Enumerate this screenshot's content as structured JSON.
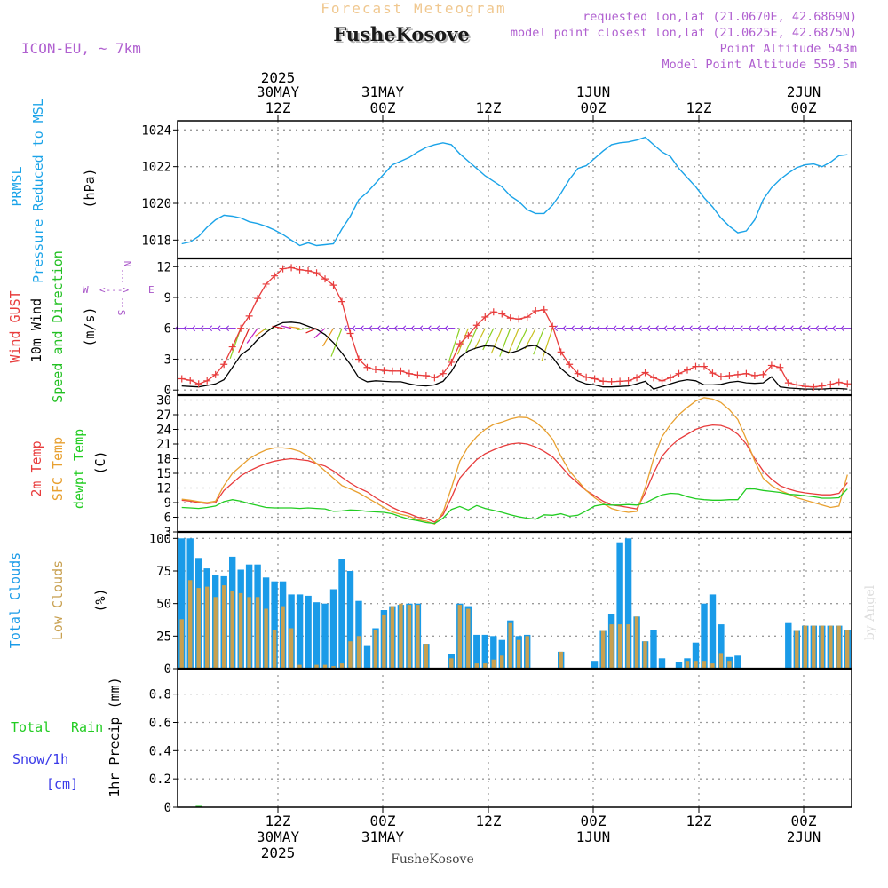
{
  "header": {
    "subtitle": "Forecast Meteogram",
    "location": "FusheKosove",
    "model": "ICON-EU, ~ 7km",
    "requested": "requested lon,lat (21.0670E, 42.6869N)",
    "closest": "model point closest lon,lat (21.0625E, 42.6875N)",
    "point_altitude": "Point Altitude 543m",
    "model_altitude": "Model Point Altitude 559.5m",
    "footer_location": "FusheKosove",
    "credit": "by Angel"
  },
  "colors": {
    "pressure": "#1aa3e8",
    "gust": "#e83c3c",
    "wind": "#000000",
    "direction": "#22c022",
    "compass": "#a855c8",
    "temp2m": "#e83c3c",
    "sfc": "#e8a030",
    "dewpt": "#22cc22",
    "total_clouds": "#1a9be8",
    "low_clouds": "#c8a050",
    "rain": "#22cc22",
    "snow": "#3a3ae8"
  },
  "time_axis": {
    "year": "2025",
    "top_ticks": [
      {
        "line1": "30MAY",
        "line2": "12Z",
        "year": "2025"
      },
      {
        "line1": "31MAY",
        "line2": "00Z"
      },
      {
        "line1": "",
        "line2": "12Z"
      },
      {
        "line1": "1JUN",
        "line2": "00Z"
      },
      {
        "line1": "",
        "line2": "12Z"
      },
      {
        "line1": "2JUN",
        "line2": "00Z"
      }
    ],
    "bottom_ticks": [
      {
        "line1": "12Z",
        "line2": "30MAY",
        "line3": "2025"
      },
      {
        "line1": "00Z",
        "line2": "31MAY"
      },
      {
        "line1": "12Z",
        "line2": ""
      },
      {
        "line1": "00Z",
        "line2": "1JUN"
      },
      {
        "line1": "12Z",
        "line2": ""
      },
      {
        "line1": "00Z",
        "line2": "2JUN"
      }
    ]
  },
  "chart_data": [
    {
      "type": "line",
      "title": "PRMSL Pressure Reduced to MSL",
      "label_line1": "PRMSL",
      "label_line2": "Pressure Reduced to MSL",
      "ylabel": "(hPa)",
      "ylim": [
        1017,
        1024.5
      ],
      "yticks": [
        1018,
        1020,
        1022,
        1024
      ],
      "series": [
        {
          "name": "PRMSL",
          "values": [
            1017.8,
            1017.9,
            1018.2,
            1018.7,
            1019.1,
            1019.35,
            1019.3,
            1019.2,
            1019.0,
            1018.9,
            1018.75,
            1018.55,
            1018.3,
            1018.0,
            1017.7,
            1017.85,
            1017.7,
            1017.75,
            1017.8,
            1018.6,
            1019.3,
            1020.2,
            1020.6,
            1021.1,
            1021.6,
            1022.1,
            1022.3,
            1022.5,
            1022.8,
            1023.05,
            1023.2,
            1023.3,
            1023.2,
            1022.7,
            1022.3,
            1021.9,
            1021.5,
            1021.2,
            1020.9,
            1020.4,
            1020.1,
            1019.65,
            1019.45,
            1019.45,
            1019.9,
            1020.55,
            1021.3,
            1021.9,
            1022.05,
            1022.45,
            1022.85,
            1023.2,
            1023.3,
            1023.35,
            1023.45,
            1023.6,
            1023.2,
            1022.8,
            1022.55,
            1021.9,
            1021.4,
            1020.9,
            1020.3,
            1019.8,
            1019.2,
            1018.75,
            1018.4,
            1018.5,
            1019.1,
            1020.2,
            1020.85,
            1021.3,
            1021.65,
            1021.95,
            1022.1,
            1022.15,
            1022.0,
            1022.25,
            1022.6,
            1022.65
          ]
        }
      ]
    },
    {
      "type": "line",
      "title": "Wind GUST / 10m Wind Speed and Direction",
      "label_gust": "Wind GUST",
      "label_wind": "10m Wind",
      "label_dir": "Speed and Direction",
      "ylabel": "(m/s)",
      "ylim": [
        -0.5,
        12.8
      ],
      "yticks": [
        0,
        3,
        6,
        9,
        12
      ],
      "compass": {
        "n": "N",
        "s": "S",
        "w": "W",
        "e": "E",
        "arrow": "<--->"
      },
      "series": [
        {
          "name": "Wind GUST",
          "values": [
            1.1,
            0.95,
            0.6,
            0.9,
            1.5,
            2.5,
            4.2,
            6.0,
            7.2,
            8.9,
            10.3,
            11.1,
            11.8,
            11.9,
            11.7,
            11.6,
            11.4,
            10.8,
            10.2,
            8.6,
            5.5,
            3.0,
            2.2,
            2.0,
            1.9,
            1.85,
            1.85,
            1.6,
            1.45,
            1.4,
            1.2,
            1.6,
            2.7,
            4.5,
            5.3,
            6.3,
            7.1,
            7.6,
            7.4,
            7.0,
            6.9,
            7.1,
            7.7,
            7.8,
            6.2,
            3.7,
            2.5,
            1.6,
            1.25,
            1.1,
            0.85,
            0.8,
            0.85,
            0.9,
            1.2,
            1.7,
            1.2,
            0.9,
            1.2,
            1.6,
            1.95,
            2.3,
            2.3,
            1.65,
            1.3,
            1.4,
            1.5,
            1.6,
            1.4,
            1.5,
            2.4,
            2.2,
            0.7,
            0.5,
            0.35,
            0.3,
            0.4,
            0.55,
            0.75,
            0.6
          ]
        },
        {
          "name": "10m Wind",
          "values": [
            0.4,
            0.35,
            0.3,
            0.45,
            0.6,
            1.0,
            2.2,
            3.4,
            4.0,
            4.9,
            5.6,
            6.2,
            6.55,
            6.6,
            6.5,
            6.2,
            5.9,
            5.4,
            4.6,
            3.6,
            2.5,
            1.2,
            0.8,
            0.9,
            0.85,
            0.8,
            0.8,
            0.6,
            0.45,
            0.4,
            0.5,
            0.85,
            1.8,
            3.2,
            3.8,
            4.1,
            4.3,
            4.25,
            3.9,
            3.6,
            3.85,
            4.25,
            4.35,
            3.8,
            3.2,
            2.1,
            1.4,
            0.9,
            0.6,
            0.5,
            0.3,
            0.3,
            0.35,
            0.4,
            0.6,
            0.85,
            0.1,
            0.35,
            0.6,
            0.85,
            1.0,
            0.9,
            0.5,
            0.5,
            0.55,
            0.75,
            0.85,
            0.7,
            0.65,
            0.7,
            1.3,
            0.3,
            0.2,
            0.15,
            0.1,
            0.1,
            0.1,
            0.15,
            0.15,
            0.1
          ]
        }
      ]
    },
    {
      "type": "line",
      "title": "2m Temp / SFC Temp / dewpt Temp",
      "label_t2m": "2m Temp",
      "label_sfc": "SFC Temp",
      "label_dew": "dewpt Temp",
      "ylabel": "(C)",
      "ylim": [
        3,
        31
      ],
      "yticks": [
        3,
        6,
        9,
        12,
        15,
        18,
        21,
        24,
        27,
        30
      ],
      "series": [
        {
          "name": "2m Temp",
          "values": [
            9.5,
            9.3,
            9.0,
            8.8,
            9.0,
            11.5,
            13.0,
            14.5,
            15.5,
            16.3,
            17.0,
            17.5,
            17.8,
            18.0,
            17.8,
            17.6,
            17.0,
            16.5,
            15.5,
            14.2,
            13.0,
            12.0,
            11.2,
            10.0,
            9.0,
            8.0,
            7.2,
            6.7,
            6.0,
            5.7,
            5.0,
            6.5,
            10.0,
            14.0,
            16.0,
            17.8,
            19.0,
            19.8,
            20.5,
            21.0,
            21.2,
            21.0,
            20.4,
            19.5,
            18.4,
            16.5,
            14.5,
            13.0,
            11.5,
            10.4,
            9.3,
            8.5,
            8.3,
            8.0,
            7.7,
            11.0,
            15.0,
            18.5,
            20.5,
            22.0,
            23.0,
            24.0,
            24.6,
            24.9,
            24.8,
            24.2,
            23.0,
            21.0,
            18.0,
            15.5,
            13.8,
            12.5,
            11.8,
            11.3,
            11.0,
            10.8,
            10.6,
            10.6,
            10.9,
            13.1
          ]
        },
        {
          "name": "SFC Temp",
          "values": [
            9.7,
            9.5,
            9.2,
            9.0,
            9.3,
            12.5,
            15.0,
            16.5,
            18.0,
            19.0,
            19.8,
            20.2,
            20.2,
            20.0,
            19.5,
            18.5,
            17.0,
            15.5,
            14.0,
            12.5,
            11.8,
            11.0,
            10.0,
            9.0,
            8.0,
            7.1,
            6.6,
            6.2,
            5.5,
            5.2,
            4.6,
            7.0,
            12.0,
            17.5,
            20.5,
            22.5,
            24.0,
            25.0,
            25.5,
            26.1,
            26.5,
            26.4,
            25.5,
            24.0,
            22.0,
            18.5,
            15.5,
            13.5,
            11.5,
            10.0,
            8.8,
            7.8,
            7.3,
            7.0,
            7.2,
            12.0,
            18.0,
            22.5,
            25.0,
            27.0,
            28.5,
            29.8,
            30.5,
            30.2,
            29.5,
            28.0,
            26.0,
            22.0,
            17.5,
            14.0,
            12.5,
            11.5,
            10.8,
            10.0,
            9.5,
            9.0,
            8.5,
            8.0,
            8.3,
            14.7
          ]
        },
        {
          "name": "dewpt Temp",
          "values": [
            8.0,
            7.9,
            7.8,
            8.0,
            8.3,
            9.2,
            9.6,
            9.3,
            8.8,
            8.4,
            8.0,
            7.9,
            7.9,
            7.9,
            7.8,
            7.9,
            7.8,
            7.7,
            7.2,
            7.3,
            7.5,
            7.4,
            7.2,
            7.1,
            7.0,
            6.7,
            6.1,
            5.6,
            5.3,
            4.9,
            4.7,
            5.8,
            7.6,
            8.2,
            7.5,
            8.4,
            7.8,
            7.4,
            7.0,
            6.5,
            6.1,
            5.8,
            5.6,
            6.5,
            6.4,
            6.7,
            6.2,
            6.4,
            7.3,
            8.3,
            8.6,
            8.5,
            8.5,
            8.6,
            8.5,
            8.9,
            9.8,
            10.6,
            10.9,
            10.8,
            10.2,
            9.8,
            9.6,
            9.5,
            9.5,
            9.6,
            9.6,
            11.8,
            11.8,
            11.5,
            11.3,
            11.1,
            10.7,
            10.6,
            10.4,
            10.2,
            9.9,
            9.9,
            10.0,
            11.8
          ]
        }
      ]
    },
    {
      "type": "bar",
      "title": "Total Clouds / Low Clouds",
      "label_total": "Total Clouds",
      "label_low": "Low Clouds",
      "ylabel": "(%)",
      "ylim": [
        0,
        105
      ],
      "yticks": [
        0,
        25,
        50,
        75,
        100
      ],
      "series": [
        {
          "name": "Total Clouds",
          "values": [
            100,
            100,
            85,
            77,
            72,
            71,
            86,
            76,
            80,
            80,
            70,
            67,
            67,
            57,
            57,
            56,
            51,
            50,
            61,
            84,
            75,
            52,
            18,
            31,
            45,
            48,
            49,
            50,
            50,
            19,
            0,
            0,
            11,
            50,
            48,
            26,
            26,
            25,
            22,
            37,
            25,
            26,
            0,
            0,
            0,
            13,
            0,
            0,
            0,
            6,
            29,
            42,
            97,
            100,
            40,
            21,
            30,
            8,
            0,
            5,
            8,
            20,
            50,
            57,
            34,
            9,
            10,
            0,
            0,
            0,
            0,
            0,
            35,
            29,
            33,
            33,
            33,
            33,
            33,
            30
          ]
        },
        {
          "name": "Low Clouds",
          "values": [
            38,
            68,
            62,
            63,
            55,
            64,
            60,
            58,
            55,
            55,
            46,
            30,
            48,
            31,
            3,
            0,
            3,
            3,
            2,
            4,
            21,
            25,
            0,
            30,
            41,
            48,
            50,
            49,
            49,
            19,
            0,
            0,
            8,
            49,
            46,
            4,
            4,
            7,
            10,
            35,
            22,
            25,
            0,
            0,
            0,
            13,
            0,
            0,
            0,
            0,
            29,
            34,
            34,
            34,
            40,
            21,
            0,
            0,
            0,
            0,
            6,
            6,
            6,
            4,
            12,
            6,
            0,
            0,
            0,
            0,
            0,
            0,
            0,
            29,
            33,
            33,
            33,
            33,
            33,
            30
          ]
        }
      ]
    },
    {
      "type": "bar",
      "title": "1hr Precip",
      "label_total": "Total",
      "label_rain": "Rain",
      "label_snow": "Snow/1h",
      "label_cm": "[cm]",
      "ylabel": "1hr Precip (mm)",
      "ylim": [
        0,
        0.98
      ],
      "yticks": [
        0,
        0.2,
        0.4,
        0.6,
        0.8
      ],
      "ytick_labels": [
        "0",
        "0.2",
        "0.4",
        "0.6",
        "0.8"
      ],
      "series": [
        {
          "name": "Rain",
          "values": [
            0,
            0,
            0.003,
            0,
            0,
            0,
            0,
            0,
            0,
            0,
            0,
            0,
            0,
            0,
            0,
            0,
            0,
            0,
            0,
            0,
            0,
            0,
            0,
            0,
            0,
            0,
            0,
            0,
            0,
            0,
            0,
            0,
            0,
            0,
            0,
            0,
            0,
            0,
            0,
            0,
            0,
            0,
            0,
            0,
            0,
            0,
            0,
            0,
            0,
            0,
            0,
            0,
            0,
            0,
            0,
            0,
            0,
            0,
            0,
            0,
            0,
            0,
            0,
            0,
            0,
            0,
            0,
            0,
            0,
            0,
            0,
            0,
            0,
            0,
            0,
            0,
            0,
            0,
            0,
            0
          ]
        }
      ]
    }
  ]
}
